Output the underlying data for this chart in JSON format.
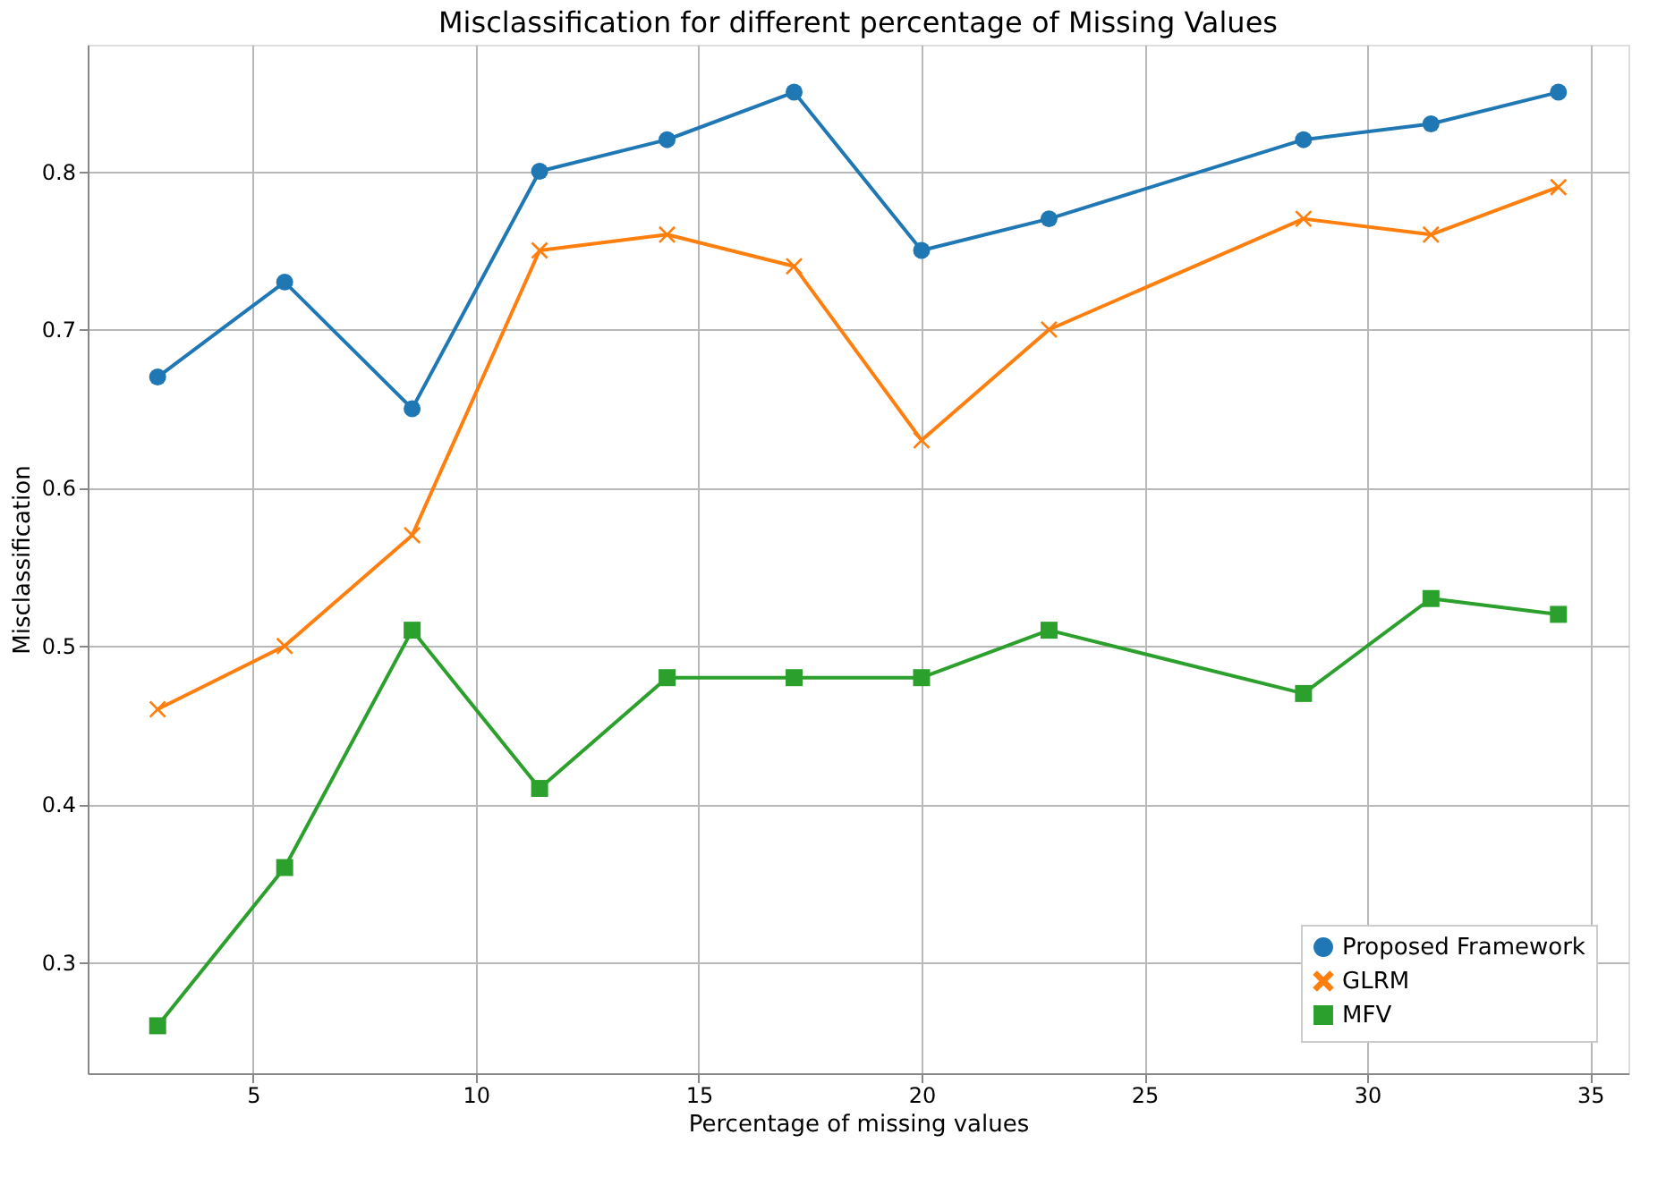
{
  "chart_data": {
    "type": "line",
    "title": "Misclassification for different percentage of Missing Values",
    "xlabel": "Percentage of missing values",
    "ylabel": "Misclassification",
    "x": [
      2.86,
      5.71,
      8.57,
      11.43,
      14.29,
      17.14,
      20,
      22.86,
      28.57,
      31.43,
      34.29
    ],
    "series": [
      {
        "name": "Proposed Framework",
        "color": "#1f77b4",
        "marker": "circle",
        "values": [
          0.67,
          0.73,
          0.65,
          0.8,
          0.82,
          0.85,
          0.75,
          0.77,
          0.82,
          0.83,
          0.85
        ]
      },
      {
        "name": "GLRM",
        "color": "#ff7f0e",
        "marker": "cross",
        "values": [
          0.46,
          0.5,
          0.57,
          0.75,
          0.76,
          0.74,
          0.63,
          0.7,
          0.77,
          0.76,
          0.79
        ]
      },
      {
        "name": "MFV",
        "color": "#2ca02c",
        "marker": "square",
        "values": [
          0.26,
          0.36,
          0.51,
          0.41,
          0.48,
          0.48,
          0.48,
          0.51,
          0.47,
          0.53,
          0.52
        ]
      }
    ],
    "xlim": [
      1.29,
      35.86
    ],
    "xticks": [
      5,
      10,
      15,
      20,
      25,
      30,
      35
    ],
    "ylim": [
      0.23,
      0.88
    ],
    "yticks": [
      0.3,
      0.4,
      0.5,
      0.6,
      0.7,
      0.8
    ],
    "grid": true,
    "legend": "bottom right",
    "line_style": "solid"
  }
}
